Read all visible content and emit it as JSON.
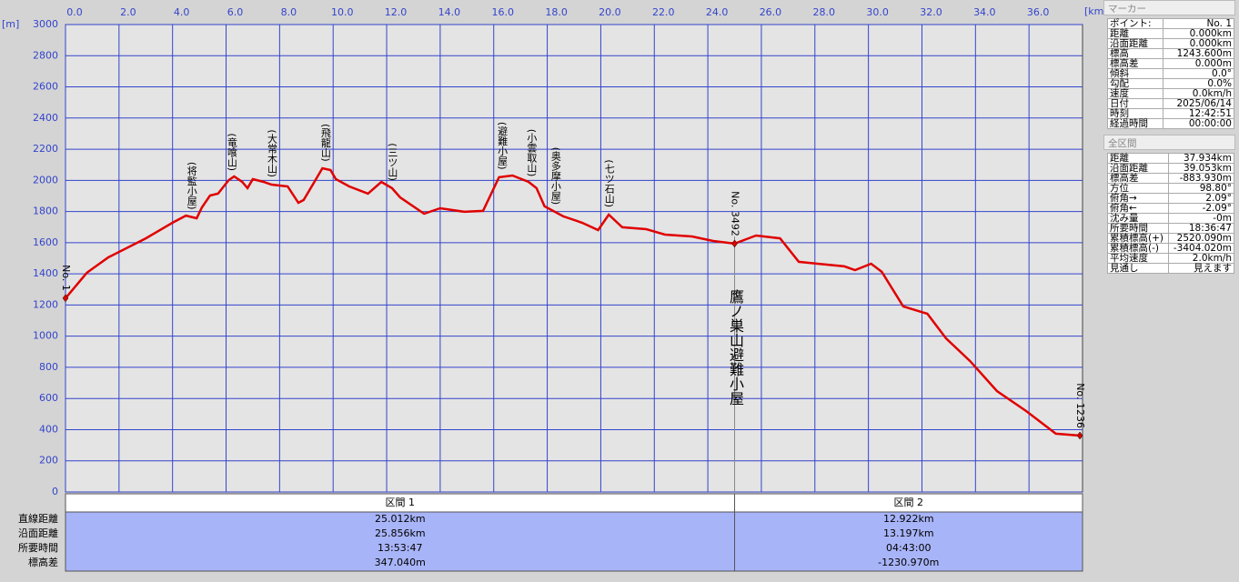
{
  "chart_data": {
    "type": "line",
    "x_unit": "[km]",
    "y_unit": "[m]",
    "color": "#e00000",
    "xlim": [
      0,
      38
    ],
    "ylim": [
      0,
      3000
    ],
    "xticks": [
      {
        "value": 0,
        "label": "0.0"
      },
      {
        "value": 2,
        "label": "2.0"
      },
      {
        "value": 4,
        "label": "4.0"
      },
      {
        "value": 6,
        "label": "6.0"
      },
      {
        "value": 8,
        "label": "8.0"
      },
      {
        "value": 10,
        "label": "10.0"
      },
      {
        "value": 12,
        "label": "12.0"
      },
      {
        "value": 14,
        "label": "14.0"
      },
      {
        "value": 16,
        "label": "16.0"
      },
      {
        "value": 18,
        "label": "18.0"
      },
      {
        "value": 20,
        "label": "20.0"
      },
      {
        "value": 22,
        "label": "22.0"
      },
      {
        "value": 24,
        "label": "24.0"
      },
      {
        "value": 26,
        "label": "26.0"
      },
      {
        "value": 28,
        "label": "28.0"
      },
      {
        "value": 30,
        "label": "30.0"
      },
      {
        "value": 32,
        "label": "32.0"
      },
      {
        "value": 34,
        "label": "34.0"
      },
      {
        "value": 36,
        "label": "36.0"
      }
    ],
    "yticks": [
      0,
      200,
      400,
      600,
      800,
      1000,
      1200,
      1400,
      1600,
      1800,
      2000,
      2200,
      2400,
      2600,
      2800,
      3000
    ],
    "grid": true,
    "x": [
      0,
      0.8,
      1.6,
      3.0,
      4.0,
      4.5,
      4.9,
      5.1,
      5.4,
      5.7,
      6.1,
      6.3,
      6.6,
      6.8,
      7.0,
      7.4,
      7.7,
      8.3,
      8.7,
      8.9,
      9.3,
      9.6,
      9.9,
      10.1,
      10.6,
      11.3,
      11.8,
      12.2,
      12.5,
      13.4,
      14.0,
      14.9,
      15.6,
      16.2,
      16.7,
      17.3,
      17.6,
      17.9,
      18.6,
      19.3,
      19.9,
      20.3,
      20.8,
      21.7,
      22.4,
      23.4,
      24.2,
      25.0,
      25.8,
      26.7,
      27.4,
      28.1,
      29.1,
      29.5,
      30.1,
      30.5,
      31.3,
      32.2,
      32.9,
      33.8,
      34.8,
      35.9,
      37.0,
      37.9
    ],
    "values": [
      1244,
      1407,
      1506,
      1628,
      1728,
      1774,
      1757,
      1827,
      1903,
      1915,
      2002,
      2025,
      1990,
      1950,
      2008,
      1990,
      1973,
      1961,
      1856,
      1874,
      1990,
      2078,
      2066,
      2008,
      1961,
      1915,
      1990,
      1950,
      1891,
      1786,
      1821,
      1798,
      1804,
      2020,
      2031,
      1990,
      1950,
      1833,
      1769,
      1728,
      1681,
      1780,
      1699,
      1687,
      1652,
      1640,
      1611,
      1594,
      1646,
      1628,
      1477,
      1465,
      1448,
      1424,
      1465,
      1413,
      1191,
      1144,
      986,
      840,
      648,
      519,
      374,
      362
    ],
    "annotations": [
      {
        "text": "(将監小屋)",
        "x": 4.7
      },
      {
        "text": "(竜喰山)",
        "x": 6.2
      },
      {
        "text": "(大常木山)",
        "x": 7.7
      },
      {
        "text": "(飛龍山)",
        "x": 9.7
      },
      {
        "text": "(三ツ山)",
        "x": 12.2
      },
      {
        "text": "(避難小屋)",
        "x": 16.3
      },
      {
        "text": "(小雲取山)",
        "x": 17.4
      },
      {
        "text": "(奥多摩小屋)",
        "x": 18.3
      },
      {
        "text": "(七ツ石山)",
        "x": 20.3
      }
    ],
    "markers": [
      {
        "label": "No. 1",
        "x": 0,
        "y": 1244
      },
      {
        "label": "No. 3492",
        "x": 25.0,
        "y": 1594,
        "name": "鷹ノ巣山避難小屋"
      },
      {
        "label": "No. 1236",
        "x": 37.9,
        "y": 362
      }
    ]
  },
  "sections": {
    "headers": [
      "区間 1",
      "区間 2"
    ],
    "rows": [
      {
        "label": "直線距離",
        "values": [
          "25.012km",
          "12.922km"
        ]
      },
      {
        "label": "沿面距離",
        "values": [
          "25.856km",
          "13.197km"
        ]
      },
      {
        "label": "所要時間",
        "values": [
          "13:53:47",
          "04:43:00"
        ]
      },
      {
        "label": "標高差",
        "values": [
          "347.040m",
          "-1230.970m"
        ]
      }
    ]
  },
  "marker_panel": {
    "title": "マーカー",
    "rows": [
      [
        "ポイント:",
        "No. 1"
      ],
      [
        "距離",
        "0.000km"
      ],
      [
        "沿面距離",
        "0.000km"
      ],
      [
        "標高",
        "1243.600m"
      ],
      [
        "標高差",
        "0.000m"
      ],
      [
        "傾斜",
        "0.0°"
      ],
      [
        "勾配",
        "0.0%"
      ],
      [
        "速度",
        "0.0km/h"
      ],
      [
        "日付",
        "2025/06/14"
      ],
      [
        "時刻",
        "12:42:51"
      ],
      [
        "経過時間",
        "00:00:00"
      ]
    ]
  },
  "total_panel": {
    "title": "全区間",
    "rows": [
      [
        "距離",
        "37.934km"
      ],
      [
        "沿面距離",
        "39.053km"
      ],
      [
        "標高差",
        "-883.930m"
      ],
      [
        "方位",
        "98.80°"
      ],
      [
        "俯角→",
        "2.09°"
      ],
      [
        "俯角←",
        "-2.09°"
      ],
      [
        "沈み量",
        "-0m"
      ],
      [
        "所要時間",
        "18:36:47"
      ],
      [
        "累積標高(+)",
        "2520.090m"
      ],
      [
        "累積標高(-)",
        "-3404.020m"
      ],
      [
        "平均速度",
        "2.0km/h"
      ],
      [
        "見通し",
        "見えます"
      ]
    ]
  }
}
